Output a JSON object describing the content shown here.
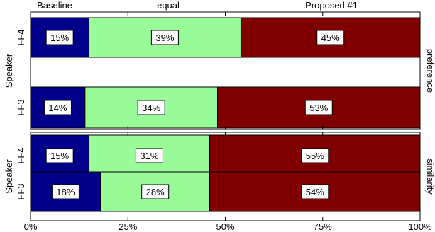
{
  "chart_data": {
    "type": "bar",
    "orientation": "horizontal",
    "stacked": true,
    "legend": [
      "Baseline",
      "equal",
      "Proposed #1"
    ],
    "colors": {
      "Baseline": "#00008b",
      "equal": "#98fb98",
      "Proposed #1": "#800000"
    },
    "xlim": [
      0,
      100
    ],
    "xticks": [
      "0%",
      "25%",
      "50%",
      "75%",
      "100%"
    ],
    "grid": false,
    "panels": [
      {
        "title": "preference",
        "ylabel": "Speaker",
        "rows": [
          {
            "category": "FF4",
            "values": [
              15,
              39,
              45
            ],
            "labels": [
              "15%",
              "39%",
              "45%"
            ]
          },
          {
            "category": "FF3",
            "values": [
              14,
              34,
              53
            ],
            "labels": [
              "14%",
              "34%",
              "53%"
            ]
          }
        ]
      },
      {
        "title": "similarity",
        "ylabel": "Speaker",
        "rows": [
          {
            "category": "FF4",
            "values": [
              15,
              31,
              55
            ],
            "labels": [
              "15%",
              "31%",
              "55%"
            ]
          },
          {
            "category": "FF3",
            "values": [
              18,
              28,
              54
            ],
            "labels": [
              "18%",
              "28%",
              "54%"
            ]
          }
        ]
      }
    ]
  }
}
